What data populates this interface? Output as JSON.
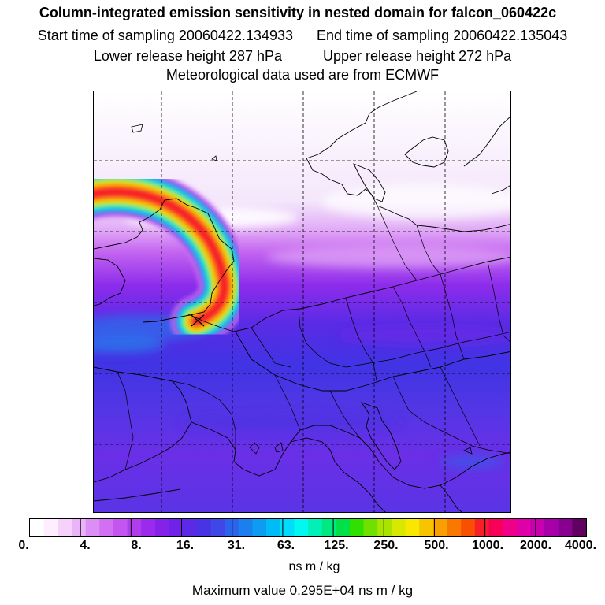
{
  "header": {
    "title": "Column-integrated emission sensitivity in nested domain for falcon_060422c",
    "start_label": "Start time of sampling 20060422.134933",
    "end_label": "End time of sampling 20060422.135043",
    "lower_label": "Lower release height  287 hPa",
    "upper_label": "Upper release height  272 hPa",
    "met_label": "Meteorological data used are from ECMWF"
  },
  "colorbar": {
    "ticks": [
      "0.",
      "4.",
      "8.",
      "16.",
      "31.",
      "63.",
      "125.",
      "250.",
      "500.",
      "1000.",
      "2000.",
      "4000."
    ],
    "colors": [
      "#ffffff",
      "#ffeeff",
      "#f6d2fb",
      "#eab4f8",
      "#dd8ef5",
      "#d170f2",
      "#c455f0",
      "#b13cee",
      "#9a2bec",
      "#8422ea",
      "#6f22e8",
      "#5b2ae6",
      "#4834e4",
      "#3f48e6",
      "#2b64ea",
      "#1b80ee",
      "#0e9cf2",
      "#00bcf6",
      "#00dcfa",
      "#00f8f0",
      "#00f0b8",
      "#00e880",
      "#00e048",
      "#30e000",
      "#70e000",
      "#a8e400",
      "#d8e800",
      "#f8e800",
      "#f8c400",
      "#f8a000",
      "#f87800",
      "#f85000",
      "#f82028",
      "#f80058",
      "#f00088",
      "#e000a8",
      "#c800b0",
      "#a800a8",
      "#880090",
      "#600060"
    ],
    "unit": "ns m / kg",
    "max_value_label": "Maximum value  0.295E+04 ns m / kg"
  },
  "map": {
    "release_marker": "x-marker",
    "gridline_color": "#000000",
    "coastline_color": "#000000",
    "plume_peak_color": "#f82028"
  }
}
